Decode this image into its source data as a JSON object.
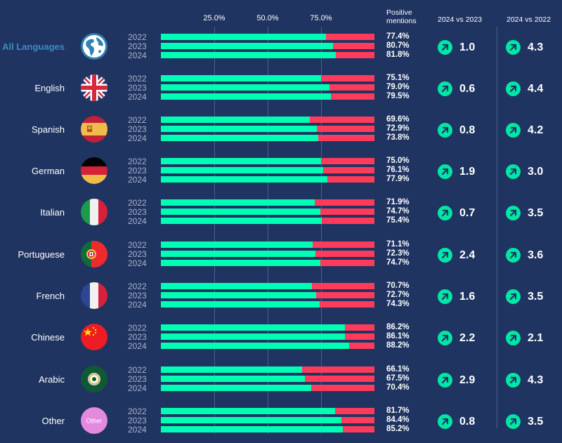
{
  "chart_data": {
    "type": "bar",
    "orientation": "horizontal",
    "stacked": true,
    "xlim": [
      0,
      100
    ],
    "x_ticks": [
      "25.0%",
      "50.0%",
      "75.0%"
    ],
    "grid": true,
    "column_headers": {
      "positive": "Positive mentions",
      "positive_line1": "Positive",
      "positive_line2": "mentions",
      "vs2023": "2024 vs 2023",
      "vs2022": "2024 vs 2022"
    },
    "years": [
      "2022",
      "2023",
      "2024"
    ],
    "colors": {
      "positive": "#00ffb5",
      "negative": "#ff3b5c",
      "delta_icon": "#00e6a6",
      "highlight": "#3b8dbd"
    },
    "rows": [
      {
        "label": "All Languages",
        "flag": "globe-icon",
        "highlight": true,
        "values": [
          77.4,
          80.7,
          81.8
        ],
        "labels": [
          "77.4%",
          "80.7%",
          "81.8%"
        ],
        "vs2023": "1.0",
        "vs2022": "4.3"
      },
      {
        "label": "English",
        "flag": "uk-flag-icon",
        "values": [
          75.1,
          79.0,
          79.5
        ],
        "labels": [
          "75.1%",
          "79.0%",
          "79.5%"
        ],
        "vs2023": "0.6",
        "vs2022": "4.4"
      },
      {
        "label": "Spanish",
        "flag": "spain-flag-icon",
        "values": [
          69.6,
          72.9,
          73.8
        ],
        "labels": [
          "69.6%",
          "72.9%",
          "73.8%"
        ],
        "vs2023": "0.8",
        "vs2022": "4.2"
      },
      {
        "label": "German",
        "flag": "germany-flag-icon",
        "values": [
          75.0,
          76.1,
          77.9
        ],
        "labels": [
          "75.0%",
          "76.1%",
          "77.9%"
        ],
        "vs2023": "1.9",
        "vs2022": "3.0"
      },
      {
        "label": "Italian",
        "flag": "italy-flag-icon",
        "values": [
          71.9,
          74.7,
          75.4
        ],
        "labels": [
          "71.9%",
          "74.7%",
          "75.4%"
        ],
        "vs2023": "0.7",
        "vs2022": "3.5"
      },
      {
        "label": "Portuguese",
        "flag": "portugal-flag-icon",
        "values": [
          71.1,
          72.3,
          74.7
        ],
        "labels": [
          "71.1%",
          "72.3%",
          "74.7%"
        ],
        "vs2023": "2.4",
        "vs2022": "3.6"
      },
      {
        "label": "French",
        "flag": "france-flag-icon",
        "values": [
          70.7,
          72.7,
          74.3
        ],
        "labels": [
          "70.7%",
          "72.7%",
          "74.3%"
        ],
        "vs2023": "1.6",
        "vs2022": "3.5"
      },
      {
        "label": "Chinese",
        "flag": "china-flag-icon",
        "values": [
          86.2,
          86.1,
          88.2
        ],
        "labels": [
          "86.2%",
          "86.1%",
          "88.2%"
        ],
        "vs2023": "2.2",
        "vs2022": "2.1"
      },
      {
        "label": "Arabic",
        "flag": "arab-league-flag-icon",
        "values": [
          66.1,
          67.5,
          70.4
        ],
        "labels": [
          "66.1%",
          "67.5%",
          "70.4%"
        ],
        "vs2023": "2.9",
        "vs2022": "4.3"
      },
      {
        "label": "Other",
        "flag": "other-badge-icon",
        "flag_text": "Other",
        "values": [
          81.7,
          84.4,
          85.2
        ],
        "labels": [
          "81.7%",
          "84.4%",
          "85.2%"
        ],
        "vs2023": "0.8",
        "vs2022": "3.5"
      }
    ]
  }
}
